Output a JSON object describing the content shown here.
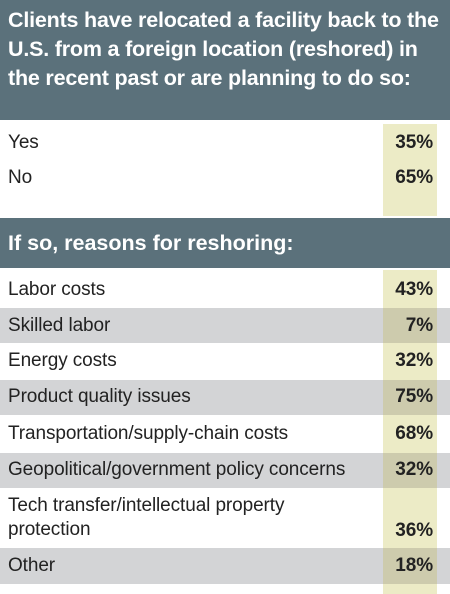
{
  "section1": {
    "title": "Clients have relocated a facility back to the U.S. from a foreign location (reshored) in the recent past or are planning to do so:",
    "rows": [
      {
        "label": "Yes",
        "value": "35%"
      },
      {
        "label": "No",
        "value": "65%"
      }
    ]
  },
  "section2": {
    "title": "If so, reasons for reshoring:",
    "rows": [
      {
        "label": "Labor costs",
        "value": "43%"
      },
      {
        "label": "Skilled labor",
        "value": "7%"
      },
      {
        "label": "Energy costs",
        "value": "32%"
      },
      {
        "label": "Product quality issues",
        "value": "75%"
      },
      {
        "label": "Transportation/supply-chain costs",
        "value": "68%"
      },
      {
        "label": "Geopolitical/government policy concerns",
        "value": "32%"
      },
      {
        "label": "Tech transfer/intellectual property protection",
        "value": "36%"
      },
      {
        "label": "Other",
        "value": "18%"
      }
    ]
  },
  "colors": {
    "header_bg": "#5b717b",
    "value_column": "#ecebc6",
    "alt_row": "#d3d4d6"
  },
  "chart_data": [
    {
      "type": "table",
      "title": "Clients have relocated a facility back to the U.S. from a foreign location (reshored) in the recent past or are planning to do so:",
      "categories": [
        "Yes",
        "No"
      ],
      "values": [
        35,
        65
      ],
      "unit": "%"
    },
    {
      "type": "table",
      "title": "If so, reasons for reshoring:",
      "categories": [
        "Labor costs",
        "Skilled labor",
        "Energy costs",
        "Product quality issues",
        "Transportation/supply-chain costs",
        "Geopolitical/government policy concerns",
        "Tech transfer/intellectual property protection",
        "Other"
      ],
      "values": [
        43,
        7,
        32,
        75,
        68,
        32,
        36,
        18
      ],
      "unit": "%"
    }
  ]
}
